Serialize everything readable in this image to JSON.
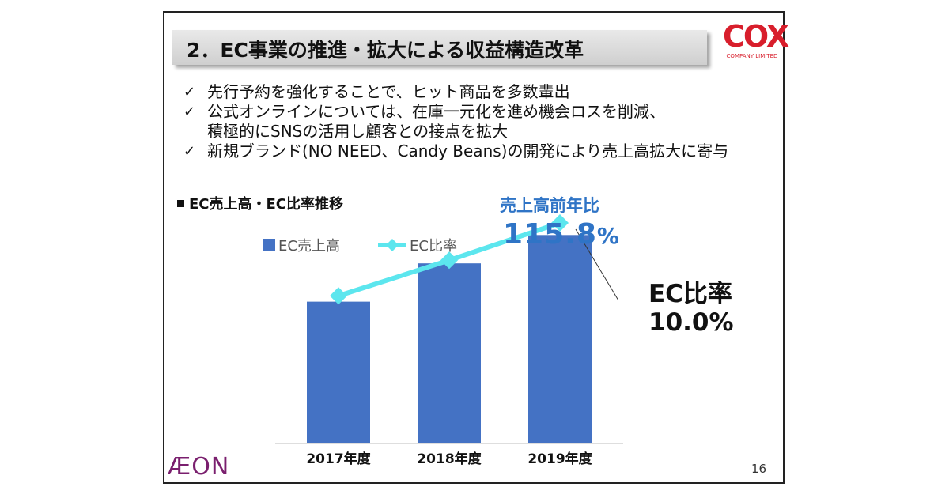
{
  "slide": {
    "title": "2．EC事業の推進・拡大による収益構造改革",
    "logo": {
      "word": "COX",
      "subtitle": "COMPANY LIMITED",
      "color": "#d81e2c"
    },
    "bullets": [
      {
        "marker": "✓",
        "lines": [
          "先行予約を強化することで、ヒット商品を多数輩出"
        ]
      },
      {
        "marker": "✓",
        "lines": [
          "公式オンラインについては、在庫一元化を進め機会ロスを削減、",
          "積極的にSNSの活用し顧客との接点を拡大"
        ]
      },
      {
        "marker": "✓",
        "lines": [
          "新規ブランド(NO NEED、Candy Beans)の開発により売上高拡大に寄与"
        ]
      }
    ],
    "section_label": "EC売上高・EC比率推移",
    "yoy_label": "売上高前年比",
    "yoy_value": "115.8",
    "yoy_unit": "%",
    "ratio_title": "EC比率",
    "ratio_value": "10.0%",
    "footer_logo": "ÆON",
    "page_number": "16",
    "accent_color": "#2f74c6"
  },
  "chart_data": {
    "type": "bar",
    "categories": [
      "2017年度",
      "2018年度",
      "2019年度"
    ],
    "series": [
      {
        "name": "EC売上高",
        "kind": "bar",
        "color": "#4472c4",
        "values": [
          100,
          127,
          147
        ]
      },
      {
        "name": "EC比率",
        "kind": "line",
        "color": "#5ce6ee",
        "marker": "diamond",
        "values": [
          5.9,
          7.9,
          10.0
        ]
      }
    ],
    "legend_position": "top-left",
    "grid": false,
    "bar_ylim": [
      0,
      160
    ],
    "line_ylim": [
      0,
      16
    ]
  }
}
